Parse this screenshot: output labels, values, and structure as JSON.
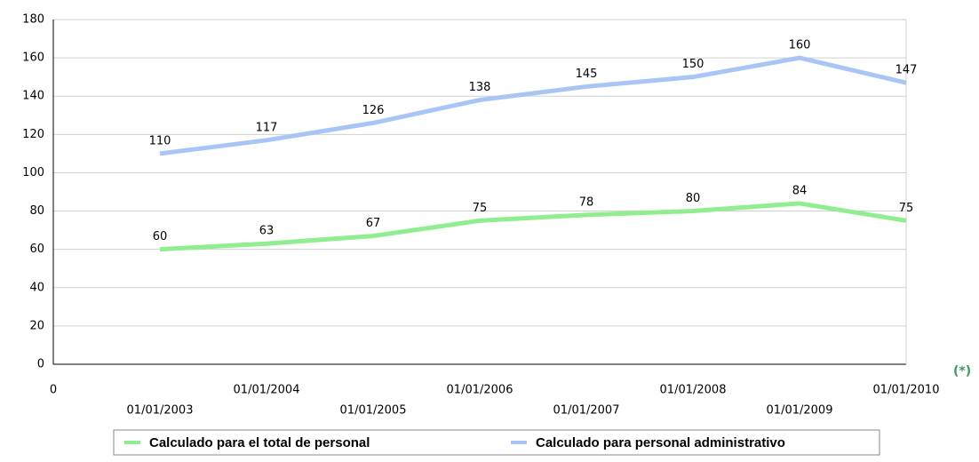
{
  "chart_data": {
    "type": "line",
    "categories": [
      "0",
      "01/01/2003",
      "01/01/2004",
      "01/01/2005",
      "01/01/2006",
      "01/01/2007",
      "01/01/2008",
      "01/01/2009",
      "01/01/2010"
    ],
    "series": [
      {
        "name": "Calculado para el total de personal",
        "color": "#90ee90",
        "values": [
          null,
          60,
          63,
          67,
          75,
          78,
          80,
          84,
          75
        ]
      },
      {
        "name": "Calculado para personal administrativo",
        "color": "#a9c5f5",
        "values": [
          null,
          110,
          117,
          126,
          138,
          145,
          150,
          160,
          147
        ]
      }
    ],
    "ylim": [
      0,
      180
    ],
    "yticks": [
      0,
      20,
      40,
      60,
      80,
      100,
      120,
      140,
      160,
      180
    ],
    "grid": true,
    "legend": "bottom",
    "note": "(*)"
  }
}
